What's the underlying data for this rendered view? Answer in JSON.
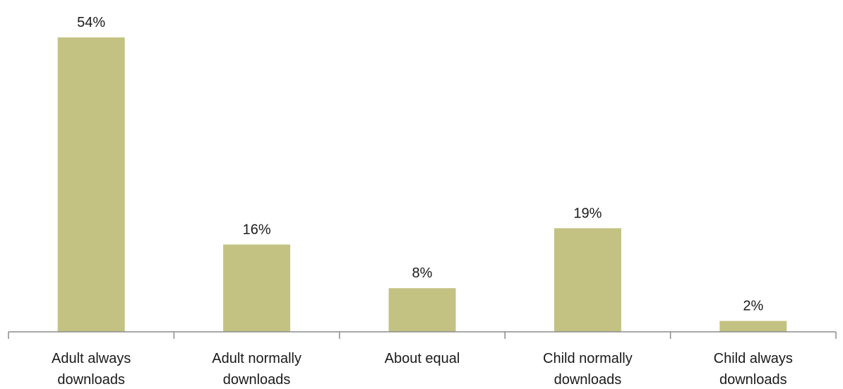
{
  "chart_data": {
    "type": "bar",
    "categories": [
      [
        "Adult always",
        "downloads"
      ],
      [
        "Adult normally",
        "downloads"
      ],
      [
        "About equal"
      ],
      [
        "Child normally",
        "downloads"
      ],
      [
        "Child always",
        "downloads"
      ]
    ],
    "values": [
      54,
      16,
      8,
      19,
      2
    ],
    "data_labels": [
      "54%",
      "16%",
      "8%",
      "19%",
      "2%"
    ],
    "unit": "%",
    "title": "",
    "xlabel": "",
    "ylabel": "",
    "ylim": [
      0,
      54
    ],
    "grid": false,
    "legend": "none",
    "colors": {
      "bar": "#c3c283",
      "axis": "#8c8c8c",
      "text": "#1a1a1a"
    }
  }
}
